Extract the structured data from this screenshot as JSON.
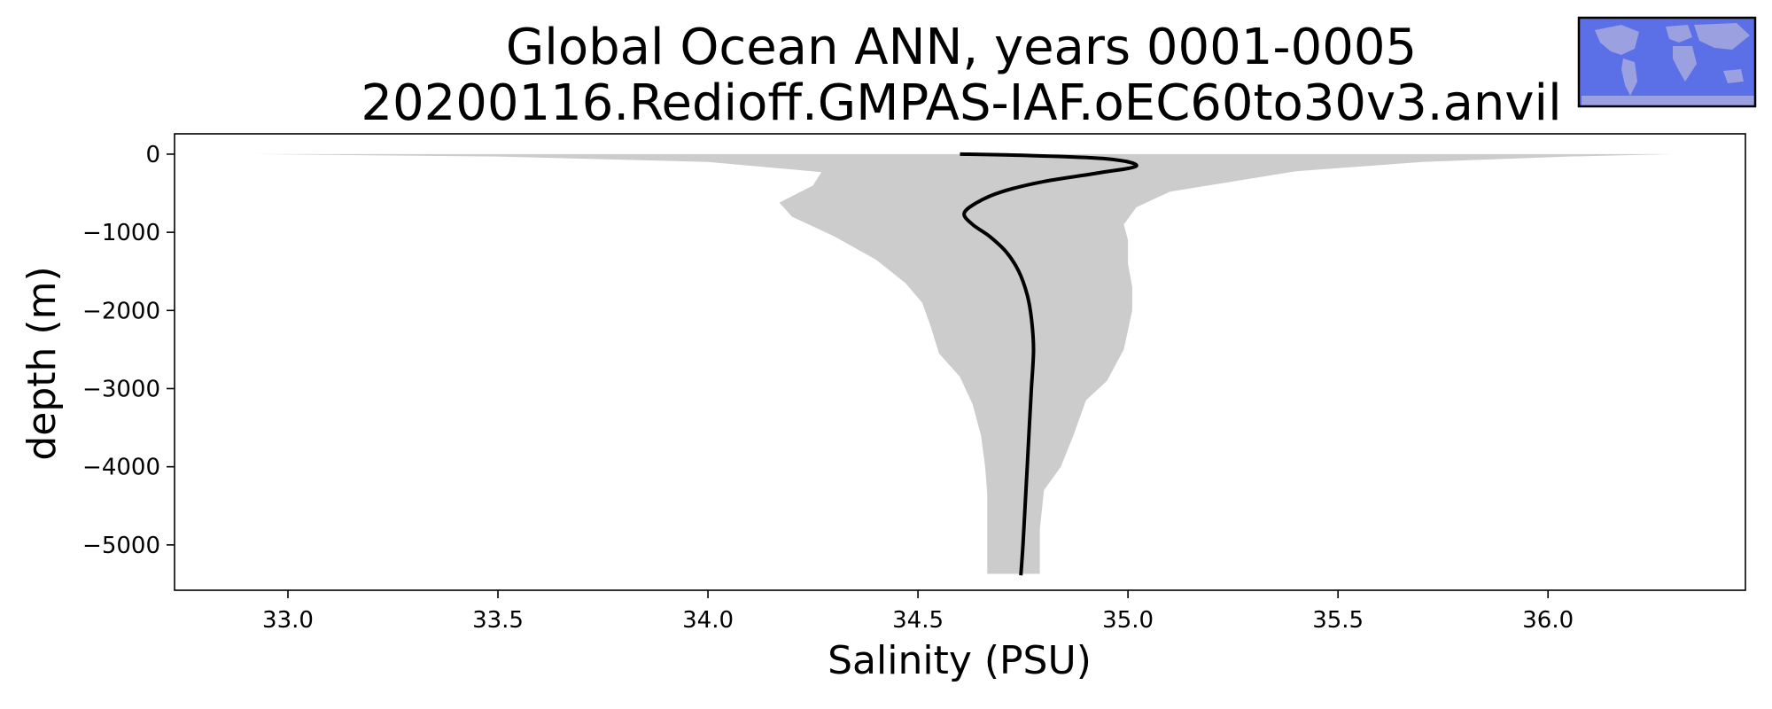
{
  "chart_data": {
    "type": "line",
    "title": "Global Ocean ANN, years 0001-0005",
    "subtitle": "20200116.Redioff.GMPAS-IAF.oEC60to30v3.anvil",
    "xlabel": "Salinity (PSU)",
    "ylabel": "depth (m)",
    "xlim": [
      32.73,
      36.47
    ],
    "ylim": [
      -5580,
      260
    ],
    "xticks": [
      33.0,
      33.5,
      34.0,
      34.5,
      35.0,
      35.5,
      36.0
    ],
    "xtick_labels": [
      "33.0",
      "33.5",
      "34.0",
      "34.5",
      "35.0",
      "35.5",
      "36.0"
    ],
    "yticks": [
      0,
      -1000,
      -2000,
      -3000,
      -4000,
      -5000
    ],
    "ytick_labels": [
      "0",
      "−1000",
      "−2000",
      "−3000",
      "−4000",
      "−5000"
    ],
    "grid": false,
    "series": [
      {
        "kind": "line",
        "color": "#000000",
        "points": [
          [
            34.6,
            0
          ],
          [
            34.75,
            -15
          ],
          [
            34.95,
            -60
          ],
          [
            35.02,
            -150
          ],
          [
            34.93,
            -240
          ],
          [
            34.8,
            -350
          ],
          [
            34.7,
            -480
          ],
          [
            34.64,
            -620
          ],
          [
            34.61,
            -760
          ],
          [
            34.63,
            -900
          ],
          [
            34.67,
            -1050
          ],
          [
            34.71,
            -1250
          ],
          [
            34.74,
            -1500
          ],
          [
            34.76,
            -1800
          ],
          [
            34.77,
            -2100
          ],
          [
            34.775,
            -2500
          ],
          [
            34.77,
            -3000
          ],
          [
            34.765,
            -3500
          ],
          [
            34.76,
            -4000
          ],
          [
            34.755,
            -4500
          ],
          [
            34.75,
            -5000
          ],
          [
            34.745,
            -5390
          ]
        ]
      }
    ],
    "envelope": {
      "kind": "fill_between",
      "color": "#cccccc",
      "min_points": [
        [
          32.92,
          0
        ],
        [
          33.5,
          -30
        ],
        [
          34.0,
          -100
        ],
        [
          34.27,
          -230
        ],
        [
          34.25,
          -400
        ],
        [
          34.17,
          -620
        ],
        [
          34.2,
          -800
        ],
        [
          34.3,
          -1050
        ],
        [
          34.4,
          -1350
        ],
        [
          34.47,
          -1650
        ],
        [
          34.51,
          -1900
        ],
        [
          34.53,
          -2200
        ],
        [
          34.55,
          -2550
        ],
        [
          34.6,
          -2850
        ],
        [
          34.63,
          -3200
        ],
        [
          34.65,
          -3600
        ],
        [
          34.66,
          -4000
        ],
        [
          34.665,
          -4350
        ],
        [
          34.665,
          -4800
        ],
        [
          34.665,
          -5370
        ]
      ],
      "max_points": [
        [
          36.3,
          0
        ],
        [
          36.05,
          -30
        ],
        [
          35.7,
          -100
        ],
        [
          35.4,
          -220
        ],
        [
          35.1,
          -480
        ],
        [
          35.02,
          -680
        ],
        [
          34.99,
          -900
        ],
        [
          35.0,
          -1100
        ],
        [
          35.0,
          -1400
        ],
        [
          35.01,
          -1700
        ],
        [
          35.01,
          -2000
        ],
        [
          34.99,
          -2500
        ],
        [
          34.95,
          -2900
        ],
        [
          34.9,
          -3150
        ],
        [
          34.87,
          -3600
        ],
        [
          34.84,
          -4000
        ],
        [
          34.8,
          -4300
        ],
        [
          34.79,
          -4800
        ],
        [
          34.79,
          -5370
        ]
      ]
    },
    "inset_map": {
      "kind": "global-region-map",
      "ocean_color": "#5b6fe6",
      "land_color": "#9aa0e0"
    }
  }
}
